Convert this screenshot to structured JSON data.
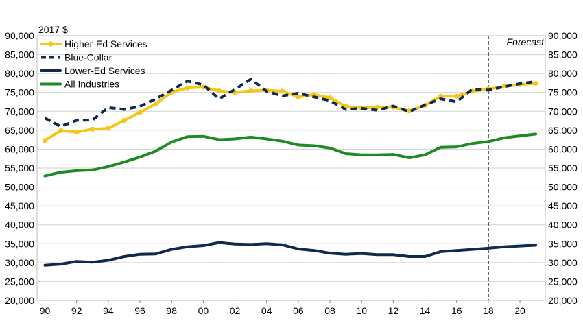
{
  "chart_data": {
    "type": "line",
    "unit_label": "2017 $",
    "annotation": "Forecast",
    "forecast_start_x": 2018,
    "x_tick_labels": [
      "90",
      "92",
      "94",
      "96",
      "98",
      "00",
      "02",
      "04",
      "06",
      "08",
      "10",
      "12",
      "14",
      "16",
      "18",
      "20"
    ],
    "x": [
      1990,
      1991,
      1992,
      1993,
      1994,
      1995,
      1996,
      1997,
      1998,
      1999,
      2000,
      2001,
      2002,
      2003,
      2004,
      2005,
      2006,
      2007,
      2008,
      2009,
      2010,
      2011,
      2012,
      2013,
      2014,
      2015,
      2016,
      2017,
      2018,
      2019,
      2020,
      2021
    ],
    "xlim": [
      1989.5,
      2021.6
    ],
    "ylim": [
      20000,
      90000
    ],
    "y_ticks": [
      20000,
      25000,
      30000,
      35000,
      40000,
      45000,
      50000,
      55000,
      60000,
      65000,
      70000,
      75000,
      80000,
      85000,
      90000
    ],
    "y_tick_labels": [
      "20,000",
      "25,000",
      "30,000",
      "35,000",
      "40,000",
      "45,000",
      "50,000",
      "55,000",
      "60,000",
      "65,000",
      "70,000",
      "75,000",
      "80,000",
      "85,000",
      "90,000"
    ],
    "grid": "horizontal",
    "legend_position": "top-left",
    "series": [
      {
        "name": "Higher-Ed Services",
        "color": "#f5c518",
        "style": "solid-markers",
        "values": [
          62300,
          64900,
          64500,
          65300,
          65500,
          67600,
          69700,
          72000,
          75100,
          76200,
          76400,
          75400,
          75000,
          75400,
          75600,
          75300,
          73800,
          74400,
          73600,
          71300,
          70900,
          71100,
          71100,
          70100,
          71600,
          74000,
          74000,
          75300,
          75900,
          76600,
          77100,
          77400
        ]
      },
      {
        "name": "Blue-Collar",
        "color": "#0f2a4a",
        "style": "dashed",
        "values": [
          68200,
          66000,
          67600,
          67700,
          71000,
          70500,
          71300,
          73300,
          75600,
          78000,
          77000,
          73300,
          75800,
          78500,
          75300,
          74100,
          74800,
          73800,
          72800,
          70500,
          70800,
          70300,
          71400,
          69900,
          71700,
          73300,
          72500,
          75900,
          75600,
          76500,
          77300,
          77900
        ]
      },
      {
        "name": "Lower-Ed Services",
        "color": "#0f2a4a",
        "style": "solid",
        "values": [
          29300,
          29600,
          30300,
          30100,
          30600,
          31600,
          32200,
          32300,
          33500,
          34200,
          34500,
          35300,
          34900,
          34800,
          35000,
          34700,
          33600,
          33200,
          32500,
          32200,
          32400,
          32100,
          32100,
          31600,
          31600,
          32900,
          33200,
          33500,
          33800,
          34200,
          34400,
          34600
        ]
      },
      {
        "name": "All Industries",
        "color": "#1e8a22",
        "style": "solid",
        "values": [
          52900,
          53900,
          54300,
          54500,
          55400,
          56600,
          57900,
          59500,
          61900,
          63300,
          63400,
          62500,
          62700,
          63200,
          62700,
          62100,
          61100,
          60900,
          60300,
          58800,
          58500,
          58500,
          58600,
          57700,
          58500,
          60500,
          60600,
          61500,
          62000,
          63000,
          63500,
          64000
        ]
      }
    ]
  }
}
